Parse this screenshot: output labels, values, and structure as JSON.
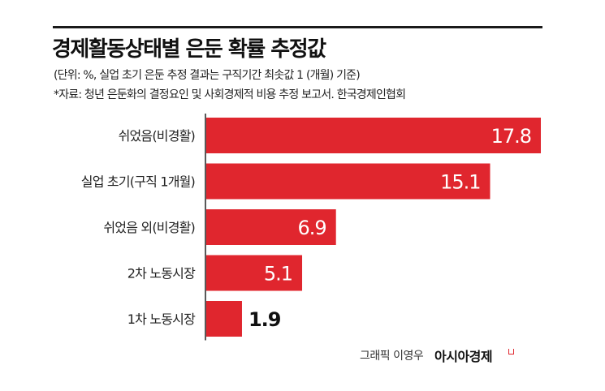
{
  "title": "경제활동상태별 은둔 확률 추정값",
  "subtitle": "(단위: %, 실업 초기 은둔 추정 결과는 구직기간 최솟값 1 (개월) 기준)",
  "source": "*자료: 청년 은둔화의 결정요인 및 사회경제적 비용 추정 보고서. 한국경제인협회",
  "credit": "그래픽 이영우",
  "brand": "아시아경제",
  "colors": {
    "bar": "#e0262e",
    "axis": "#222222"
  },
  "chart_data": {
    "type": "bar",
    "orientation": "horizontal",
    "title": "경제활동상태별 은둔 확률 추정값",
    "categories": [
      "쉬었음(비경활)",
      "실업 초기(구직 1개월)",
      "쉬었음 외(비경활)",
      "2차 노동시장",
      "1차 노동시장"
    ],
    "values": [
      17.8,
      15.1,
      6.9,
      5.1,
      1.9
    ],
    "value_labels": [
      "17.8",
      "15.1",
      "6.9",
      "5.1",
      "1.9"
    ],
    "unit": "%",
    "xlim": [
      0,
      17.8
    ],
    "grid": false
  }
}
